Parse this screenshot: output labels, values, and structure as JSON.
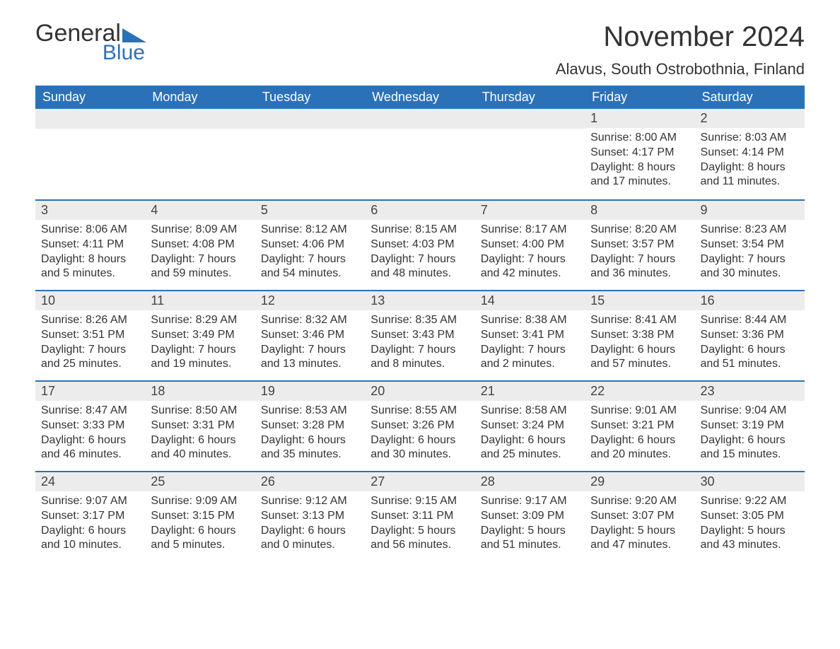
{
  "brand": {
    "word1": "General",
    "word2": "Blue",
    "accent_color": "#2b71b8"
  },
  "title": "November 2024",
  "location": "Alavus, South Ostrobothnia, Finland",
  "header_bg": "#2b71b8",
  "daynum_bg": "#ececec",
  "font_family": "Arial",
  "weekdays": [
    "Sunday",
    "Monday",
    "Tuesday",
    "Wednesday",
    "Thursday",
    "Friday",
    "Saturday"
  ],
  "leading_blanks": 5,
  "days": [
    {
      "n": 1,
      "sunrise": "8:00 AM",
      "sunset": "4:17 PM",
      "daylight": "8 hours and 17 minutes."
    },
    {
      "n": 2,
      "sunrise": "8:03 AM",
      "sunset": "4:14 PM",
      "daylight": "8 hours and 11 minutes."
    },
    {
      "n": 3,
      "sunrise": "8:06 AM",
      "sunset": "4:11 PM",
      "daylight": "8 hours and 5 minutes."
    },
    {
      "n": 4,
      "sunrise": "8:09 AM",
      "sunset": "4:08 PM",
      "daylight": "7 hours and 59 minutes."
    },
    {
      "n": 5,
      "sunrise": "8:12 AM",
      "sunset": "4:06 PM",
      "daylight": "7 hours and 54 minutes."
    },
    {
      "n": 6,
      "sunrise": "8:15 AM",
      "sunset": "4:03 PM",
      "daylight": "7 hours and 48 minutes."
    },
    {
      "n": 7,
      "sunrise": "8:17 AM",
      "sunset": "4:00 PM",
      "daylight": "7 hours and 42 minutes."
    },
    {
      "n": 8,
      "sunrise": "8:20 AM",
      "sunset": "3:57 PM",
      "daylight": "7 hours and 36 minutes."
    },
    {
      "n": 9,
      "sunrise": "8:23 AM",
      "sunset": "3:54 PM",
      "daylight": "7 hours and 30 minutes."
    },
    {
      "n": 10,
      "sunrise": "8:26 AM",
      "sunset": "3:51 PM",
      "daylight": "7 hours and 25 minutes."
    },
    {
      "n": 11,
      "sunrise": "8:29 AM",
      "sunset": "3:49 PM",
      "daylight": "7 hours and 19 minutes."
    },
    {
      "n": 12,
      "sunrise": "8:32 AM",
      "sunset": "3:46 PM",
      "daylight": "7 hours and 13 minutes."
    },
    {
      "n": 13,
      "sunrise": "8:35 AM",
      "sunset": "3:43 PM",
      "daylight": "7 hours and 8 minutes."
    },
    {
      "n": 14,
      "sunrise": "8:38 AM",
      "sunset": "3:41 PM",
      "daylight": "7 hours and 2 minutes."
    },
    {
      "n": 15,
      "sunrise": "8:41 AM",
      "sunset": "3:38 PM",
      "daylight": "6 hours and 57 minutes."
    },
    {
      "n": 16,
      "sunrise": "8:44 AM",
      "sunset": "3:36 PM",
      "daylight": "6 hours and 51 minutes."
    },
    {
      "n": 17,
      "sunrise": "8:47 AM",
      "sunset": "3:33 PM",
      "daylight": "6 hours and 46 minutes."
    },
    {
      "n": 18,
      "sunrise": "8:50 AM",
      "sunset": "3:31 PM",
      "daylight": "6 hours and 40 minutes."
    },
    {
      "n": 19,
      "sunrise": "8:53 AM",
      "sunset": "3:28 PM",
      "daylight": "6 hours and 35 minutes."
    },
    {
      "n": 20,
      "sunrise": "8:55 AM",
      "sunset": "3:26 PM",
      "daylight": "6 hours and 30 minutes."
    },
    {
      "n": 21,
      "sunrise": "8:58 AM",
      "sunset": "3:24 PM",
      "daylight": "6 hours and 25 minutes."
    },
    {
      "n": 22,
      "sunrise": "9:01 AM",
      "sunset": "3:21 PM",
      "daylight": "6 hours and 20 minutes."
    },
    {
      "n": 23,
      "sunrise": "9:04 AM",
      "sunset": "3:19 PM",
      "daylight": "6 hours and 15 minutes."
    },
    {
      "n": 24,
      "sunrise": "9:07 AM",
      "sunset": "3:17 PM",
      "daylight": "6 hours and 10 minutes."
    },
    {
      "n": 25,
      "sunrise": "9:09 AM",
      "sunset": "3:15 PM",
      "daylight": "6 hours and 5 minutes."
    },
    {
      "n": 26,
      "sunrise": "9:12 AM",
      "sunset": "3:13 PM",
      "daylight": "6 hours and 0 minutes."
    },
    {
      "n": 27,
      "sunrise": "9:15 AM",
      "sunset": "3:11 PM",
      "daylight": "5 hours and 56 minutes."
    },
    {
      "n": 28,
      "sunrise": "9:17 AM",
      "sunset": "3:09 PM",
      "daylight": "5 hours and 51 minutes."
    },
    {
      "n": 29,
      "sunrise": "9:20 AM",
      "sunset": "3:07 PM",
      "daylight": "5 hours and 47 minutes."
    },
    {
      "n": 30,
      "sunrise": "9:22 AM",
      "sunset": "3:05 PM",
      "daylight": "5 hours and 43 minutes."
    }
  ],
  "labels": {
    "sunrise": "Sunrise:",
    "sunset": "Sunset:",
    "daylight": "Daylight:"
  }
}
